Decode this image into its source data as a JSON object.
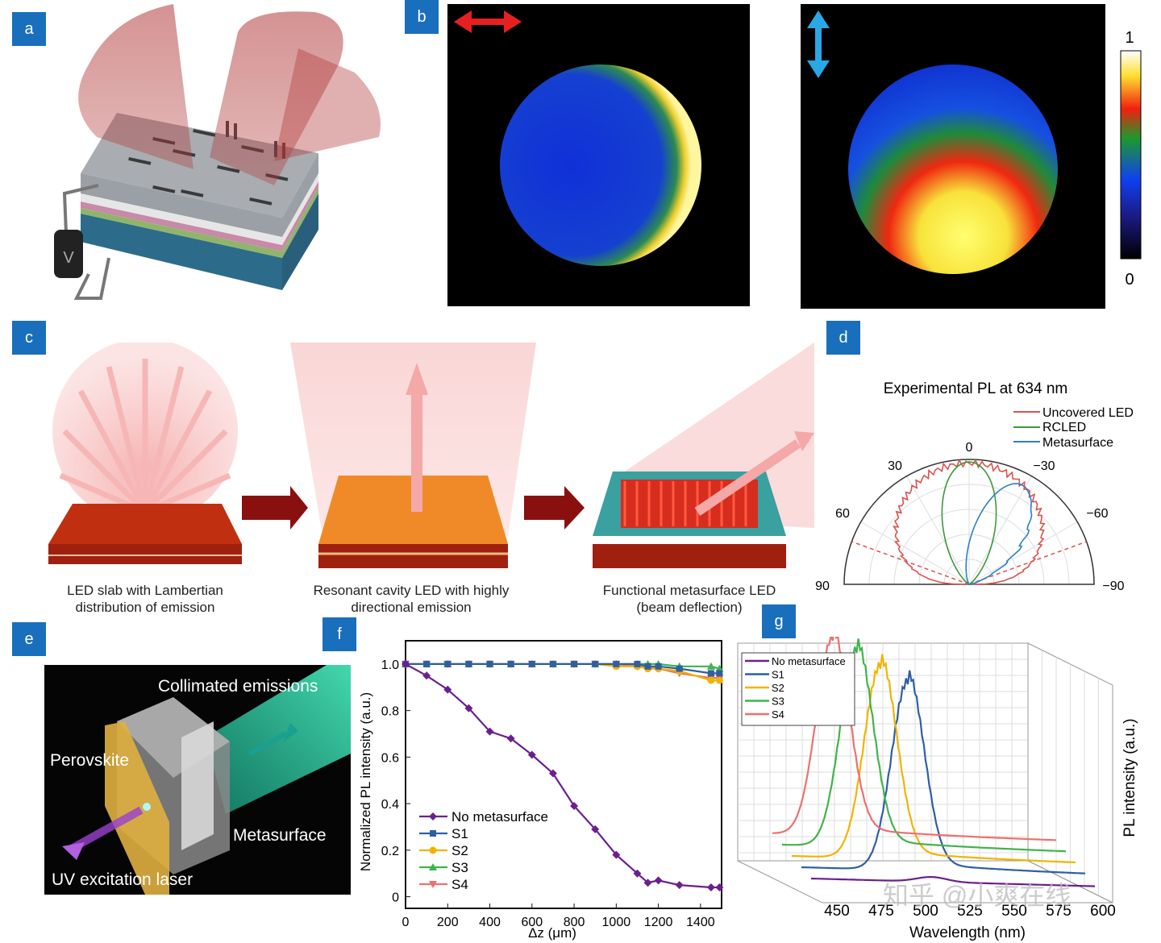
{
  "panels": {
    "a": "a",
    "b": "b",
    "c": "c",
    "d": "d",
    "e": "e",
    "f": "f",
    "g": "g"
  },
  "panel_a": {
    "voltmeter_label": "V"
  },
  "panel_b": {
    "colorbar_max": "1",
    "colorbar_min": "0"
  },
  "panel_c": {
    "caption_1_line1": "LED slab with Lambertian",
    "caption_1_line2": "distribution of emission",
    "caption_2_line1": "Resonant cavity LED with highly",
    "caption_2_line2": "directional emission",
    "caption_3_line1": "Functional metasurface LED",
    "caption_3_line2": "(beam deflection)"
  },
  "panel_e": {
    "collimated": "Collimated emissions",
    "perovskite": "Perovskite",
    "metasurface": "Metasurface",
    "uv": "UV excitation laser"
  },
  "chart_data": [
    {
      "panel": "d",
      "type": "line",
      "title": "Experimental PL at 634 nm",
      "angle_ticks": [
        "0",
        "30",
        "−30",
        "60",
        "−60",
        "90",
        "−90"
      ],
      "series": [
        {
          "name": "Uncovered LED",
          "color": "#d9534f"
        },
        {
          "name": "RCLED",
          "color": "#3a9a3a"
        },
        {
          "name": "Metasurface",
          "color": "#2e7fc4"
        }
      ]
    },
    {
      "panel": "f",
      "type": "line",
      "xlabel": "Δz (μm)",
      "ylabel": "Normalized PL intensity (a.u.)",
      "xlim": [
        0,
        1500
      ],
      "ylim": [
        -0.05,
        1.1
      ],
      "xticks": [
        "0",
        "200",
        "400",
        "600",
        "800",
        "1000",
        "1200",
        "1400"
      ],
      "yticks": [
        "0",
        "0.2",
        "0.4",
        "0.6",
        "0.8",
        "1.0"
      ],
      "x": [
        0,
        100,
        200,
        300,
        400,
        500,
        600,
        700,
        800,
        900,
        1000,
        1100,
        1150,
        1200,
        1300,
        1450,
        1490
      ],
      "series": [
        {
          "name": "No metasurface",
          "color": "#6b1f8f",
          "marker": "diamond",
          "values": [
            1.0,
            0.95,
            0.89,
            0.81,
            0.71,
            0.68,
            0.61,
            0.53,
            0.39,
            0.29,
            0.18,
            0.1,
            0.06,
            0.07,
            0.05,
            0.04,
            0.04
          ]
        },
        {
          "name": "S1",
          "color": "#2e5fa3",
          "marker": "square",
          "values": [
            1.0,
            1.0,
            1.0,
            1.0,
            1.0,
            1.0,
            1.0,
            1.0,
            1.0,
            1.0,
            1.0,
            1.0,
            0.99,
            0.99,
            0.98,
            0.96,
            0.96
          ]
        },
        {
          "name": "S2",
          "color": "#f0b400",
          "marker": "circle",
          "values": [
            1.0,
            1.0,
            1.0,
            1.0,
            1.0,
            1.0,
            1.0,
            1.0,
            1.0,
            1.0,
            0.99,
            0.99,
            0.98,
            0.98,
            0.97,
            0.93,
            0.93
          ]
        },
        {
          "name": "S3",
          "color": "#3fb44a",
          "marker": "triangle-up",
          "values": [
            1.0,
            1.0,
            1.0,
            1.0,
            1.0,
            1.0,
            1.0,
            1.0,
            1.0,
            1.0,
            1.0,
            1.0,
            1.0,
            1.0,
            0.99,
            0.99,
            0.98
          ]
        },
        {
          "name": "S4",
          "color": "#ee6f6f",
          "marker": "triangle-down",
          "values": [
            1.0,
            1.0,
            1.0,
            1.0,
            1.0,
            1.0,
            1.0,
            1.0,
            1.0,
            1.0,
            1.0,
            0.99,
            0.99,
            0.98,
            0.96,
            0.94,
            0.94
          ]
        }
      ]
    },
    {
      "panel": "g",
      "type": "line",
      "xlabel": "Wavelength (nm)",
      "ylabel": "PL intensity (a.u.)",
      "xticks": [
        "450",
        "475",
        "500",
        "525",
        "550",
        "575",
        "600"
      ],
      "series": [
        {
          "name": "No metasurface",
          "color": "#6b1f8f",
          "peak_nm": 508
        },
        {
          "name": "S1",
          "color": "#2e5fa3",
          "peak_nm": 500
        },
        {
          "name": "S2",
          "color": "#f0b400",
          "peak_nm": 490
        },
        {
          "name": "S3",
          "color": "#3fb44a",
          "peak_nm": 482
        },
        {
          "name": "S4",
          "color": "#ee6f6f",
          "peak_nm": 474
        }
      ]
    }
  ],
  "watermark": "知乎 @小爽在线"
}
